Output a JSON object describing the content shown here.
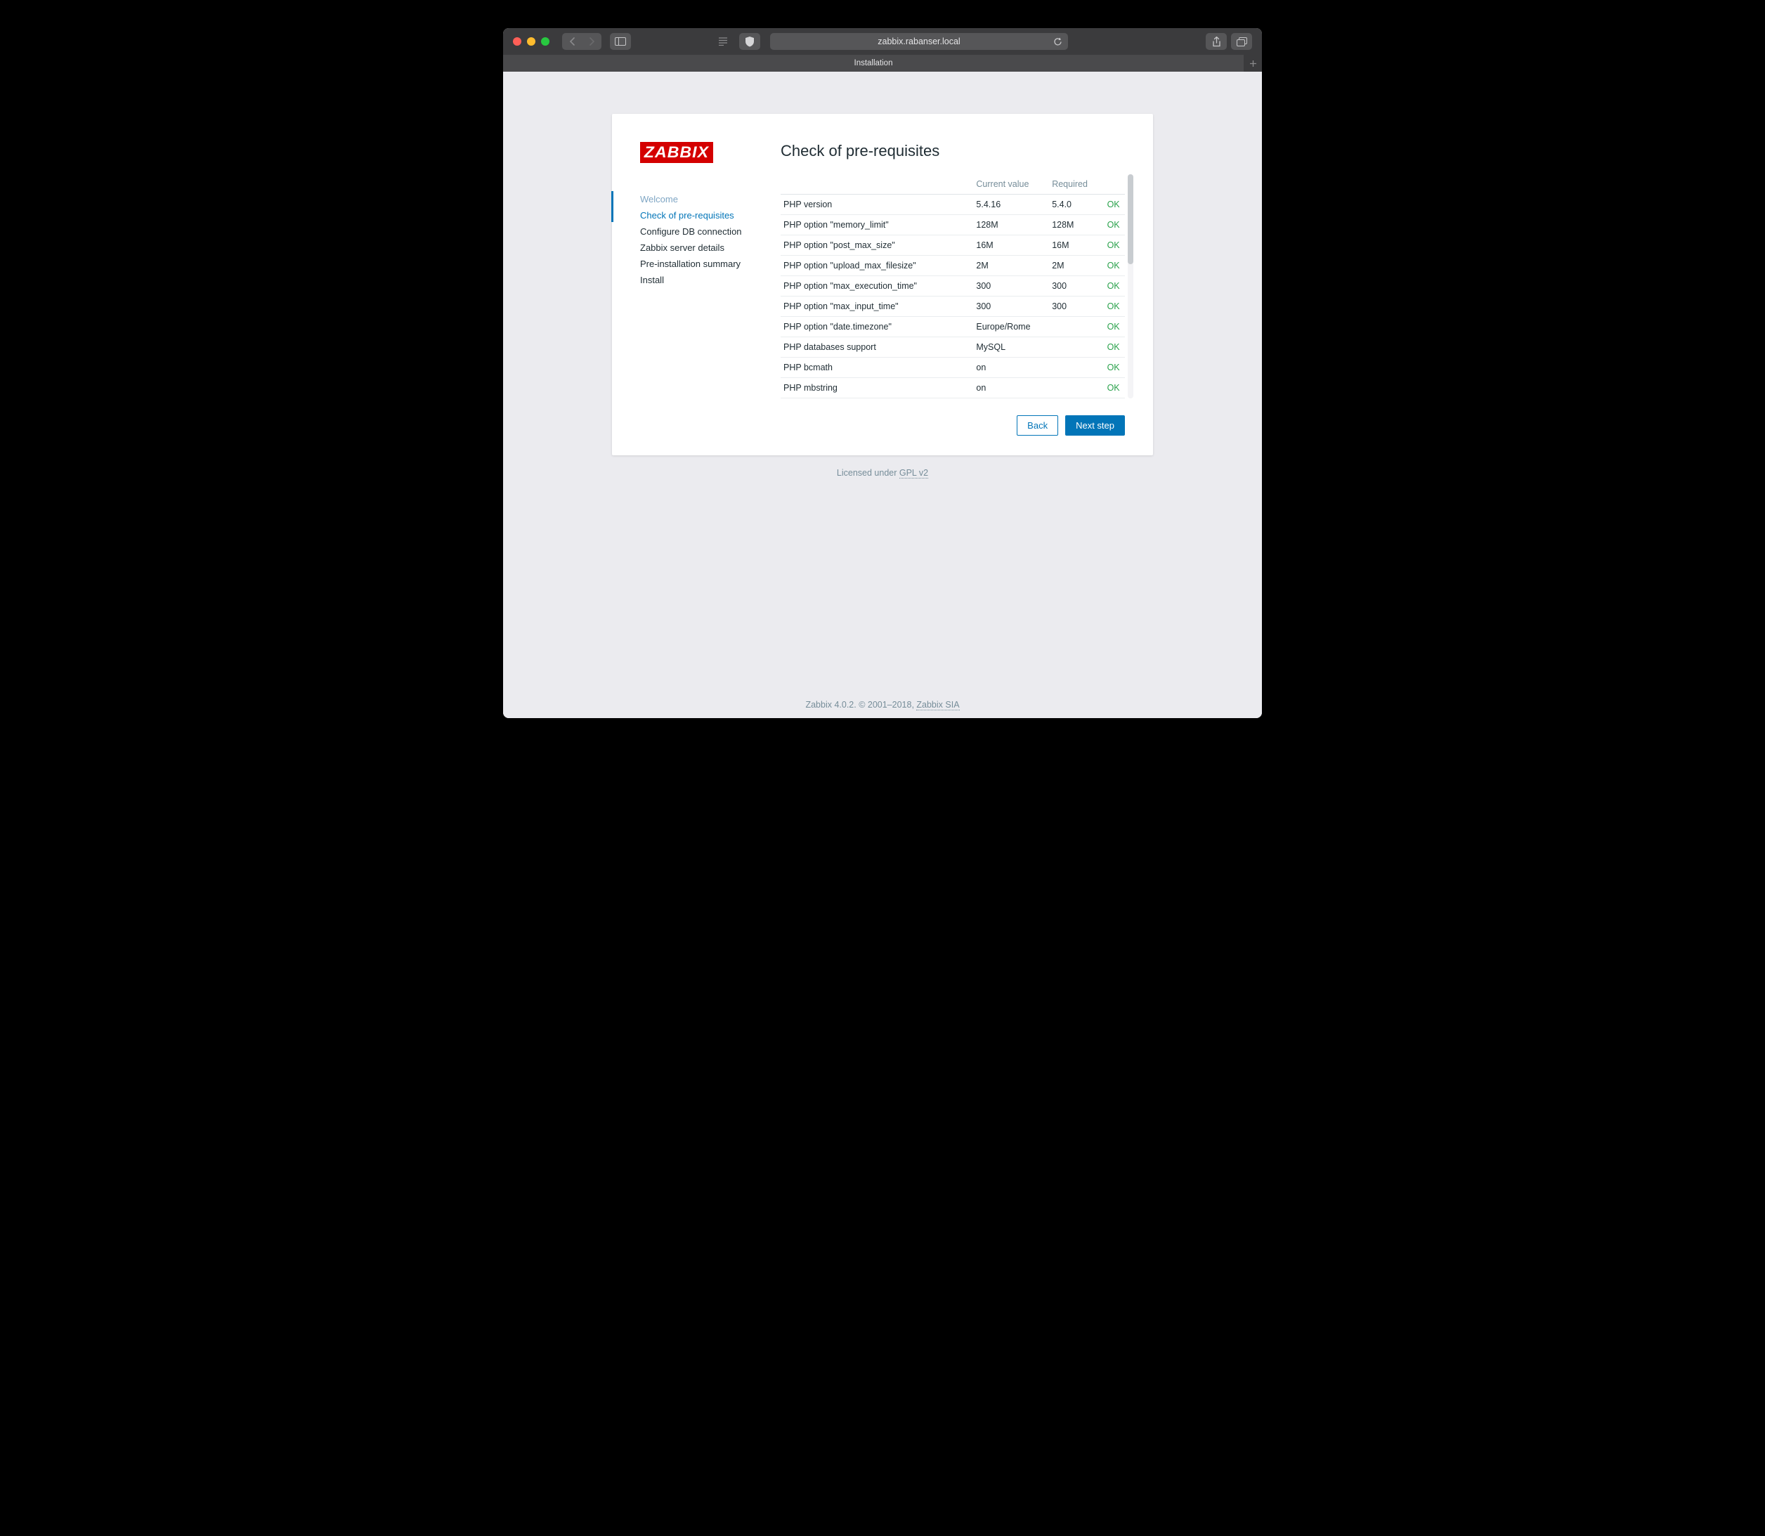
{
  "browser": {
    "url": "zabbix.rabanser.local",
    "tab_title": "Installation"
  },
  "logo_text": "ZABBIX",
  "steps": [
    {
      "label": "Welcome",
      "state": "done"
    },
    {
      "label": "Check of pre-requisites",
      "state": "active"
    },
    {
      "label": "Configure DB connection",
      "state": "pending"
    },
    {
      "label": "Zabbix server details",
      "state": "pending"
    },
    {
      "label": "Pre-installation summary",
      "state": "pending"
    },
    {
      "label": "Install",
      "state": "pending"
    }
  ],
  "page_heading": "Check of pre-requisites",
  "table": {
    "headers": {
      "name": "",
      "current": "Current value",
      "required": "Required",
      "status": ""
    },
    "rows": [
      {
        "name": "PHP version",
        "current": "5.4.16",
        "required": "5.4.0",
        "status": "OK"
      },
      {
        "name": "PHP option \"memory_limit\"",
        "current": "128M",
        "required": "128M",
        "status": "OK"
      },
      {
        "name": "PHP option \"post_max_size\"",
        "current": "16M",
        "required": "16M",
        "status": "OK"
      },
      {
        "name": "PHP option \"upload_max_filesize\"",
        "current": "2M",
        "required": "2M",
        "status": "OK"
      },
      {
        "name": "PHP option \"max_execution_time\"",
        "current": "300",
        "required": "300",
        "status": "OK"
      },
      {
        "name": "PHP option \"max_input_time\"",
        "current": "300",
        "required": "300",
        "status": "OK"
      },
      {
        "name": "PHP option \"date.timezone\"",
        "current": "Europe/Rome",
        "required": "",
        "status": "OK"
      },
      {
        "name": "PHP databases support",
        "current": "MySQL",
        "required": "",
        "status": "OK"
      },
      {
        "name": "PHP bcmath",
        "current": "on",
        "required": "",
        "status": "OK"
      },
      {
        "name": "PHP mbstring",
        "current": "on",
        "required": "",
        "status": "OK"
      }
    ]
  },
  "buttons": {
    "back": "Back",
    "next": "Next step"
  },
  "license": {
    "prefix": "Licensed under ",
    "link_text": "GPL v2"
  },
  "footer": {
    "version_text": "Zabbix 4.0.2. © 2001–2018, ",
    "company_link": "Zabbix SIA"
  },
  "colors": {
    "ok_status": "#2aa24c",
    "primary": "#0275b8",
    "logo_bg": "#d40000",
    "viewport_bg": "#ebebef"
  }
}
